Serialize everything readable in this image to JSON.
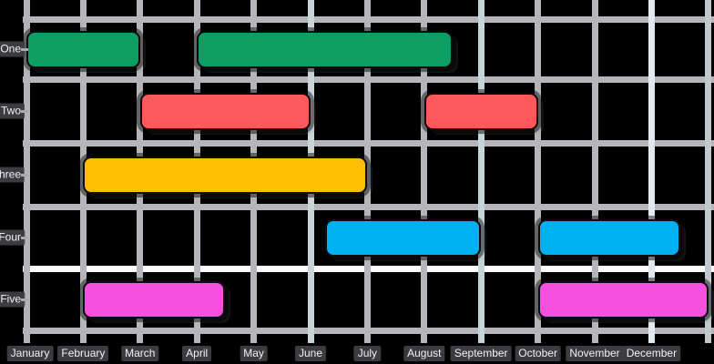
{
  "chart_data": {
    "type": "bar",
    "subtype": "gantt-timeline",
    "orientation": "horizontal",
    "title": "",
    "xlabel": "",
    "ylabel": "",
    "x_unit": "months (0 = January gridline, 12 = end of December)",
    "xlim": [
      0,
      12.1
    ],
    "grid": true,
    "background_color": "#000000",
    "x_tick_labels": [
      "January",
      "February",
      "March",
      "April",
      "May",
      "June",
      "July",
      "August",
      "September",
      "October",
      "November",
      "December"
    ],
    "y_tick_labels": [
      "One",
      "Two",
      "Three",
      "Four",
      "Five"
    ],
    "series": [
      {
        "name": "One",
        "color": "#0c9e62",
        "segments": [
          [
            0,
            2
          ],
          [
            3,
            7.5
          ]
        ]
      },
      {
        "name": "Two",
        "color": "#fb5a5a",
        "segments": [
          [
            2,
            5
          ],
          [
            7,
            9
          ]
        ]
      },
      {
        "name": "Three",
        "color": "#fdbd00",
        "segments": [
          [
            1,
            6
          ]
        ]
      },
      {
        "name": "Four",
        "color": "#00b1f2",
        "segments": [
          [
            5.25,
            8
          ],
          [
            9,
            11.5
          ]
        ]
      },
      {
        "name": "Five",
        "color": "#f650e0",
        "segments": [
          [
            1,
            3.5
          ],
          [
            9,
            12
          ]
        ]
      }
    ],
    "style": {
      "gridline_default_color": "#b5b6b9",
      "highlight_white": "#fbfbfb",
      "bar_border_color": "#0b0b10",
      "label_chip_color": "#404045",
      "label_text_color": "#f3f3f3",
      "h_grid_colors": [
        "#b5b6b9",
        "#b5b6b9",
        "#b5b6b9",
        "#b5b6b9",
        "#fbfbfb",
        "#b5b6b9"
      ],
      "v_grid_colors": [
        "#b3b4b7",
        "#b5b6b9",
        "#b5b6b9",
        "#b5b6b9",
        "#b5b6b9",
        "#c9d4da",
        "#b5b6b9",
        "#b5b6b9",
        "#c4d4da",
        "#b5b6b9",
        "#b5b6b9",
        "#e0e9ed",
        "#c2c9cd"
      ]
    }
  }
}
